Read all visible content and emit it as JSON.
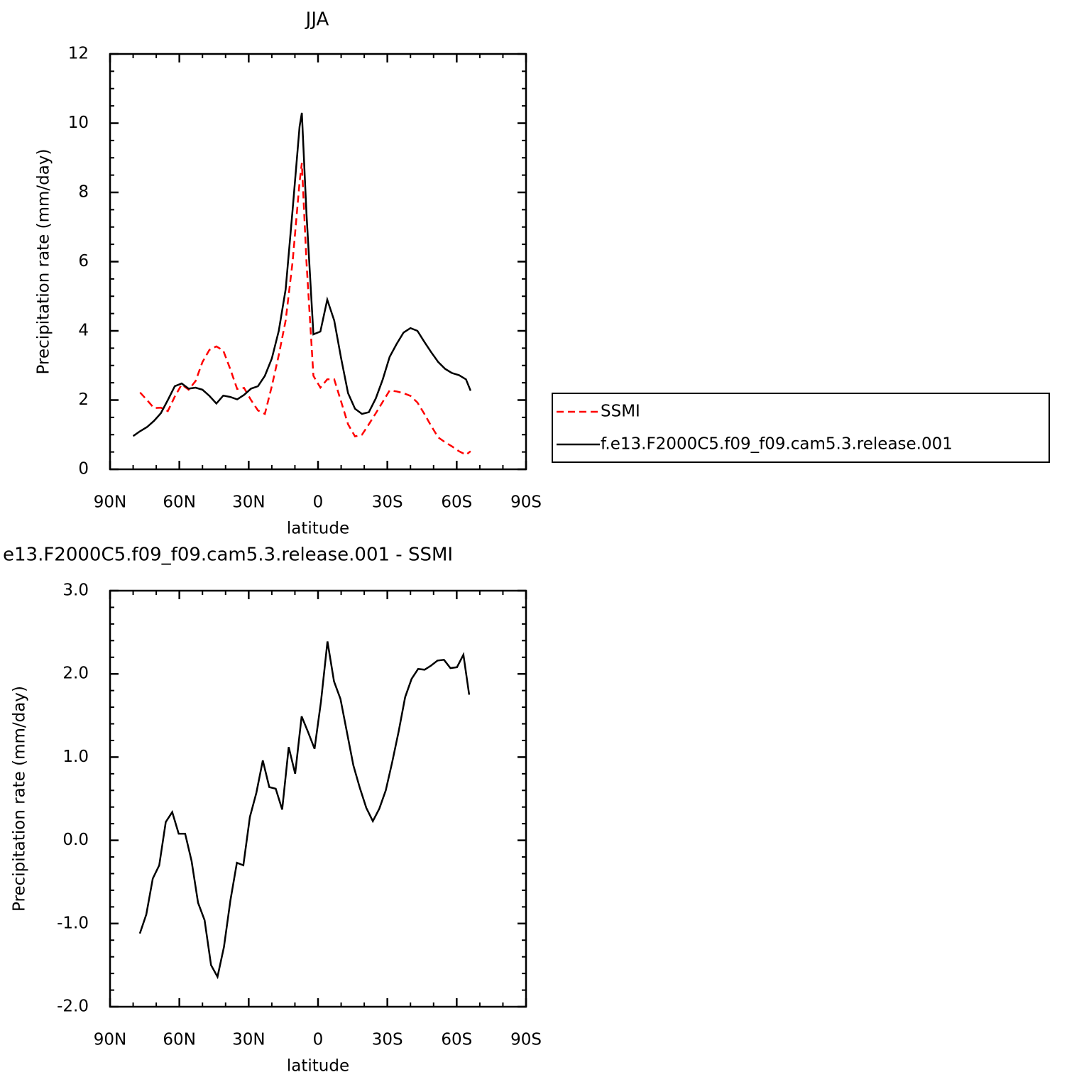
{
  "chart_data": [
    {
      "type": "line",
      "title": "JJA",
      "xlabel": "latitude",
      "ylabel": "Precipitation rate (mm/day)",
      "x": [
        80,
        77,
        74,
        71,
        68,
        65,
        62,
        59,
        56,
        53,
        50,
        47,
        44,
        41,
        38,
        35,
        32,
        29,
        26,
        23,
        20,
        17,
        14,
        11,
        8,
        7,
        5,
        2,
        -1,
        -4,
        -7,
        -10,
        -13,
        -16,
        -19,
        -22,
        -25,
        -28,
        -31,
        -34,
        -37,
        -40,
        -43,
        -46,
        -49,
        -52,
        -55,
        -58,
        -61,
        -64,
        -66
      ],
      "series": [
        {
          "name": "SSMI",
          "color": "#ff0000",
          "linestyle": "dashed",
          "values": [
            null,
            2.22,
            2.0,
            1.77,
            1.78,
            1.68,
            2.1,
            2.45,
            2.3,
            2.55,
            3.1,
            3.45,
            3.55,
            3.43,
            2.9,
            2.32,
            2.35,
            2.0,
            1.7,
            1.6,
            2.4,
            3.3,
            4.3,
            6.0,
            8.3,
            8.85,
            6.0,
            2.7,
            2.36,
            2.6,
            2.6,
            1.95,
            1.3,
            0.95,
            1.0,
            1.3,
            1.62,
            1.95,
            2.28,
            2.25,
            2.2,
            2.12,
            1.93,
            1.6,
            1.25,
            0.92,
            0.78,
            0.66,
            0.52,
            0.42,
            0.52
          ]
        },
        {
          "name": "f.e13.F2000C5.f09_f09.cam5.3.release.001",
          "color": "#000000",
          "linestyle": "solid",
          "values": [
            0.96,
            1.1,
            1.22,
            1.4,
            1.62,
            2.0,
            2.4,
            2.48,
            2.33,
            2.36,
            2.3,
            2.12,
            1.9,
            2.13,
            2.09,
            2.02,
            2.15,
            2.33,
            2.4,
            2.7,
            3.2,
            4.0,
            5.2,
            7.5,
            9.9,
            10.3,
            7.4,
            3.9,
            3.98,
            4.9,
            4.3,
            3.2,
            2.2,
            1.75,
            1.6,
            1.65,
            2.05,
            2.6,
            3.25,
            3.62,
            3.95,
            4.08,
            4.0,
            3.68,
            3.38,
            3.1,
            2.9,
            2.78,
            2.72,
            2.6,
            2.27
          ]
        }
      ],
      "xlim": [
        90,
        -90
      ],
      "xticks": [
        {
          "value": 90,
          "label": "90N"
        },
        {
          "value": 60,
          "label": "60N"
        },
        {
          "value": 30,
          "label": "30N"
        },
        0,
        {
          "value": -30,
          "label": "30S"
        },
        {
          "value": -60,
          "label": "60S"
        },
        {
          "value": -90,
          "label": "90S"
        }
      ],
      "ylim": [
        0,
        12
      ],
      "yticks": [
        0,
        2,
        4,
        6,
        8,
        10,
        12
      ],
      "legend": "right"
    },
    {
      "type": "line",
      "title": "e13.F2000C5.f09_f09.cam5.3.release.001 - SSMI",
      "xlabel": "latitude",
      "ylabel": "Precipitation rate (mm/day)",
      "x": [
        77.1,
        74.3,
        71.5,
        68.7,
        65.9,
        63.1,
        60.3,
        57.5,
        54.7,
        51.9,
        49.1,
        46.3,
        43.5,
        40.7,
        37.9,
        35.1,
        32.3,
        29.5,
        26.7,
        23.9,
        21.1,
        18.3,
        15.5,
        12.7,
        9.9,
        7.1,
        4.3,
        1.5,
        -1.3,
        -4.1,
        -6.9,
        -9.7,
        -12.5,
        -15.3,
        -18.1,
        -20.9,
        -23.7,
        -26.5,
        -29.3,
        -32.1,
        -34.9,
        -37.7,
        -40.5,
        -43.3,
        -46.1,
        -48.9,
        -51.7,
        -54.5,
        -57.3,
        -60.1,
        -62.9,
        -65.4
      ],
      "color": "#000000",
      "values": [
        -1.12,
        -0.89,
        -0.46,
        -0.3,
        0.22,
        0.34,
        0.08,
        0.08,
        -0.25,
        -0.75,
        -0.96,
        -1.5,
        -1.64,
        -1.28,
        -0.72,
        -0.27,
        -0.3,
        0.28,
        0.57,
        0.96,
        0.64,
        0.62,
        0.37,
        1.12,
        0.8,
        1.49,
        1.3,
        1.1,
        1.67,
        2.39,
        1.91,
        1.7,
        1.3,
        0.9,
        0.63,
        0.39,
        0.23,
        0.38,
        0.6,
        0.94,
        1.31,
        1.72,
        1.94,
        2.06,
        2.05,
        2.1,
        2.16,
        2.17,
        2.07,
        2.08,
        2.23,
        1.75
      ],
      "xlim": [
        90,
        -90
      ],
      "xticks": [
        {
          "value": 90,
          "label": "90N"
        },
        {
          "value": 60,
          "label": "60N"
        },
        {
          "value": 30,
          "label": "30N"
        },
        0,
        {
          "value": -30,
          "label": "30S"
        },
        {
          "value": -60,
          "label": "60S"
        },
        {
          "value": -90,
          "label": "90S"
        }
      ],
      "ylim": [
        -2,
        3
      ],
      "yticks": [
        {
          "value": -2,
          "label": "-2.0"
        },
        {
          "value": -1,
          "label": "-1.0"
        },
        {
          "value": 0,
          "label": "0.0"
        },
        {
          "value": 1,
          "label": "1.0"
        },
        {
          "value": 2,
          "label": "2.0"
        },
        {
          "value": 3,
          "label": "3.0"
        }
      ]
    }
  ]
}
